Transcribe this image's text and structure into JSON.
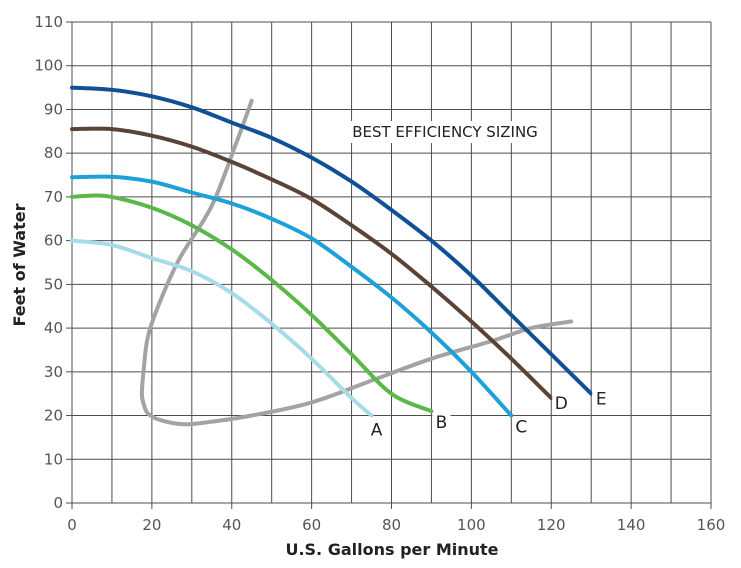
{
  "chart_data": {
    "type": "line",
    "xlabel": "U.S. Gallons per Minute",
    "ylabel": "Feet of Water",
    "xlim": [
      0,
      160
    ],
    "ylim": [
      0,
      110
    ],
    "xticks": [
      0,
      20,
      40,
      60,
      80,
      100,
      120,
      140,
      160
    ],
    "yticks": [
      0,
      10,
      20,
      30,
      40,
      50,
      60,
      70,
      80,
      90,
      100,
      110
    ],
    "grid": true,
    "annotation": "BEST EFFICIENCY SIZING",
    "colors": {
      "A": "#a6dbe8",
      "B": "#5bb848",
      "C": "#1ea0d9",
      "D": "#5a4437",
      "E": "#114f96",
      "efficiency": "#a3a3a3",
      "grid": "#4d4d4d"
    },
    "series": [
      {
        "name": "A",
        "x": [
          0,
          10,
          20,
          30,
          40,
          50,
          60,
          70,
          75
        ],
        "y": [
          60,
          59,
          56,
          53,
          48,
          41,
          33,
          24,
          20
        ]
      },
      {
        "name": "B",
        "x": [
          0,
          5,
          10,
          20,
          30,
          40,
          50,
          60,
          70,
          80,
          90
        ],
        "y": [
          70,
          70.3,
          70,
          67.5,
          63.5,
          58,
          51,
          43,
          34,
          25,
          21
        ]
      },
      {
        "name": "C",
        "x": [
          0,
          10,
          20,
          30,
          40,
          50,
          60,
          70,
          80,
          90,
          100,
          110
        ],
        "y": [
          74.5,
          74.6,
          73.5,
          71,
          68.5,
          65,
          60.5,
          54,
          47,
          39,
          30,
          20
        ]
      },
      {
        "name": "D",
        "x": [
          0,
          10,
          20,
          30,
          40,
          50,
          60,
          70,
          80,
          90,
          100,
          110,
          120
        ],
        "y": [
          85.5,
          85.5,
          84,
          81.5,
          78,
          74,
          69.5,
          63.5,
          57,
          49.5,
          41.5,
          33,
          24
        ]
      },
      {
        "name": "E",
        "x": [
          0,
          10,
          20,
          30,
          40,
          50,
          60,
          70,
          80,
          90,
          100,
          110,
          120,
          130
        ],
        "y": [
          95,
          94.5,
          93,
          90.5,
          87,
          83.5,
          79,
          73.5,
          67,
          60,
          52,
          43,
          34,
          25
        ]
      },
      {
        "name": "",
        "x": [
          45,
          41,
          35,
          27,
          22,
          19,
          18,
          17.5,
          18,
          19,
          22,
          28,
          35,
          45,
          60,
          75,
          90,
          105,
          115,
          125
        ],
        "y": [
          92,
          82,
          68,
          56,
          46,
          38,
          31,
          25,
          22.5,
          20.5,
          19,
          18,
          18.6,
          20,
          23,
          28,
          33,
          37,
          40,
          41.5
        ]
      }
    ]
  }
}
